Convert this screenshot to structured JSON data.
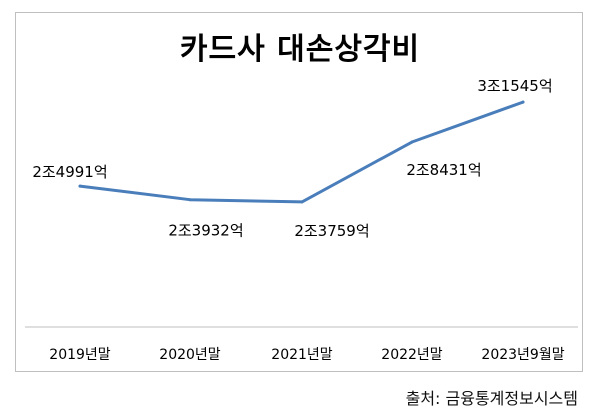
{
  "chart_data": {
    "type": "line",
    "title": "카드사 대손상각비",
    "categories": [
      "2019년말",
      "2020년말",
      "2021년말",
      "2022년말",
      "2023년9월말"
    ],
    "series": [
      {
        "values": [
          24991,
          23932,
          23759,
          28431,
          31545
        ],
        "data_labels": [
          "2조4991억",
          "2조3932억",
          "2조3759억",
          "2조8431억",
          "3조1545억"
        ]
      }
    ],
    "unit": "억 원",
    "ylim": [
      14000,
      36000
    ],
    "grid": false,
    "legend": "none"
  },
  "colors": {
    "line": "#4a7ebb",
    "axis": "#bfbfbf"
  },
  "source": "출처: 금융통계정보시스템"
}
